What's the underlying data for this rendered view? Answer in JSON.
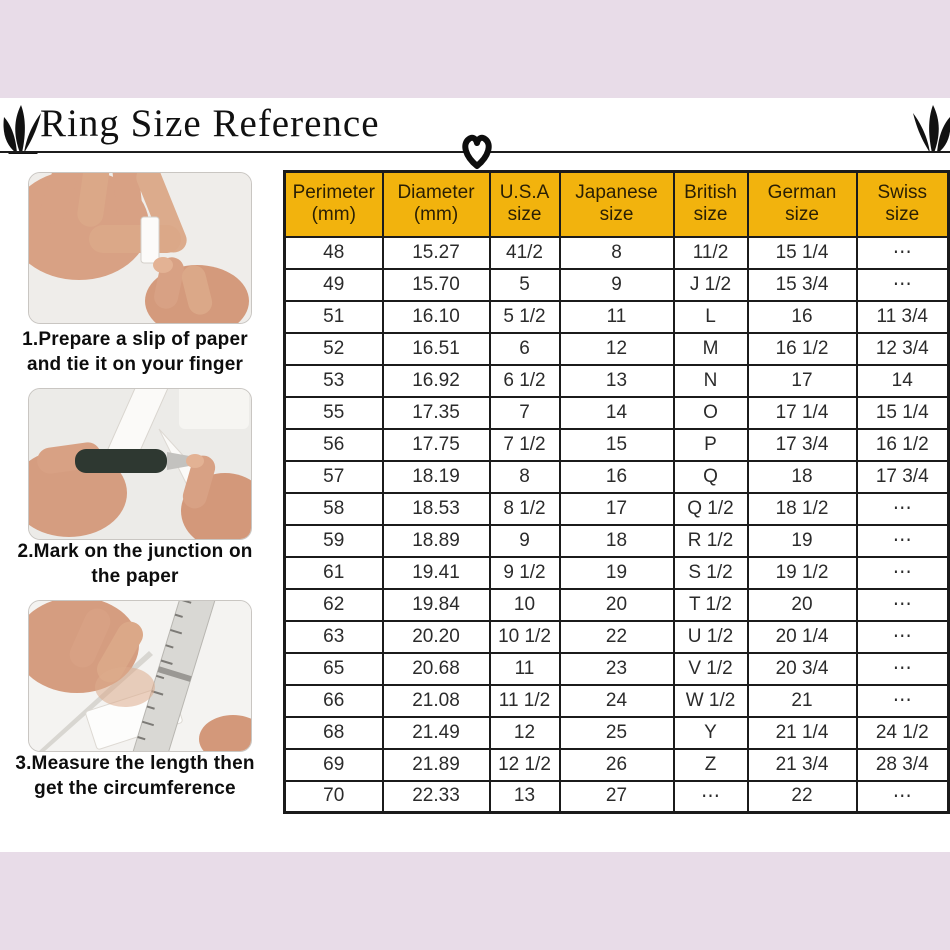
{
  "header": {
    "title": "Ring Size Reference"
  },
  "icons": {
    "leaf_left": "leaf-flourish",
    "leaf_right": "leaf-flourish",
    "heart": "heart-outline"
  },
  "steps": [
    {
      "caption": "1.Prepare a slip of paper\nand tie it on your finger",
      "photo": "hands tying a slip of paper on a finger"
    },
    {
      "caption": "2.Mark on the junction on\nthe paper",
      "photo": "hands marking the paper junction with a pen"
    },
    {
      "caption": "3.Measure the length then\nget the circumference",
      "photo": "hands measuring the paper length with a ruler"
    }
  ],
  "chart_data": {
    "type": "table",
    "title": "Ring Size Reference",
    "columns": [
      "Perimeter\n(mm)",
      "Diameter\n(mm)",
      "U.S.A\nsize",
      "Japanese\nsize",
      "British\nsize",
      "German\nsize",
      "Swiss\nsize"
    ],
    "rows": [
      [
        "48",
        "15.27",
        "41/2",
        "8",
        "11/2",
        "15 1/4",
        "⋯"
      ],
      [
        "49",
        "15.70",
        "5",
        "9",
        "J 1/2",
        "15 3/4",
        "⋯"
      ],
      [
        "51",
        "16.10",
        "5 1/2",
        "11",
        "L",
        "16",
        "11 3/4"
      ],
      [
        "52",
        "16.51",
        "6",
        "12",
        "M",
        "16 1/2",
        "12 3/4"
      ],
      [
        "53",
        "16.92",
        "6 1/2",
        "13",
        "N",
        "17",
        "14"
      ],
      [
        "55",
        "17.35",
        "7",
        "14",
        "O",
        "17 1/4",
        "15 1/4"
      ],
      [
        "56",
        "17.75",
        "7 1/2",
        "15",
        "P",
        "17 3/4",
        "16 1/2"
      ],
      [
        "57",
        "18.19",
        "8",
        "16",
        "Q",
        "18",
        "17 3/4"
      ],
      [
        "58",
        "18.53",
        "8 1/2",
        "17",
        "Q 1/2",
        "18 1/2",
        "⋯"
      ],
      [
        "59",
        "18.89",
        "9",
        "18",
        "R 1/2",
        "19",
        "⋯"
      ],
      [
        "61",
        "19.41",
        "9 1/2",
        "19",
        "S 1/2",
        "19 1/2",
        "⋯"
      ],
      [
        "62",
        "19.84",
        "10",
        "20",
        "T 1/2",
        "20",
        "⋯"
      ],
      [
        "63",
        "20.20",
        "10 1/2",
        "22",
        "U 1/2",
        "20 1/4",
        "⋯"
      ],
      [
        "65",
        "20.68",
        "11",
        "23",
        "V 1/2",
        "20 3/4",
        "⋯"
      ],
      [
        "66",
        "21.08",
        "11 1/2",
        "24",
        "W 1/2",
        "21",
        "⋯"
      ],
      [
        "68",
        "21.49",
        "12",
        "25",
        "Y",
        "21 1/4",
        "24 1/2"
      ],
      [
        "69",
        "21.89",
        "12 1/2",
        "26",
        "Z",
        "21 3/4",
        "28 3/4"
      ],
      [
        "70",
        "22.33",
        "13",
        "27",
        "⋯",
        "22",
        "⋯"
      ]
    ]
  },
  "colors": {
    "band_pink": "#e8dce8",
    "header_orange": "#f2b30d",
    "table_border": "#1b1b1b",
    "text": "#2b2b2b"
  }
}
